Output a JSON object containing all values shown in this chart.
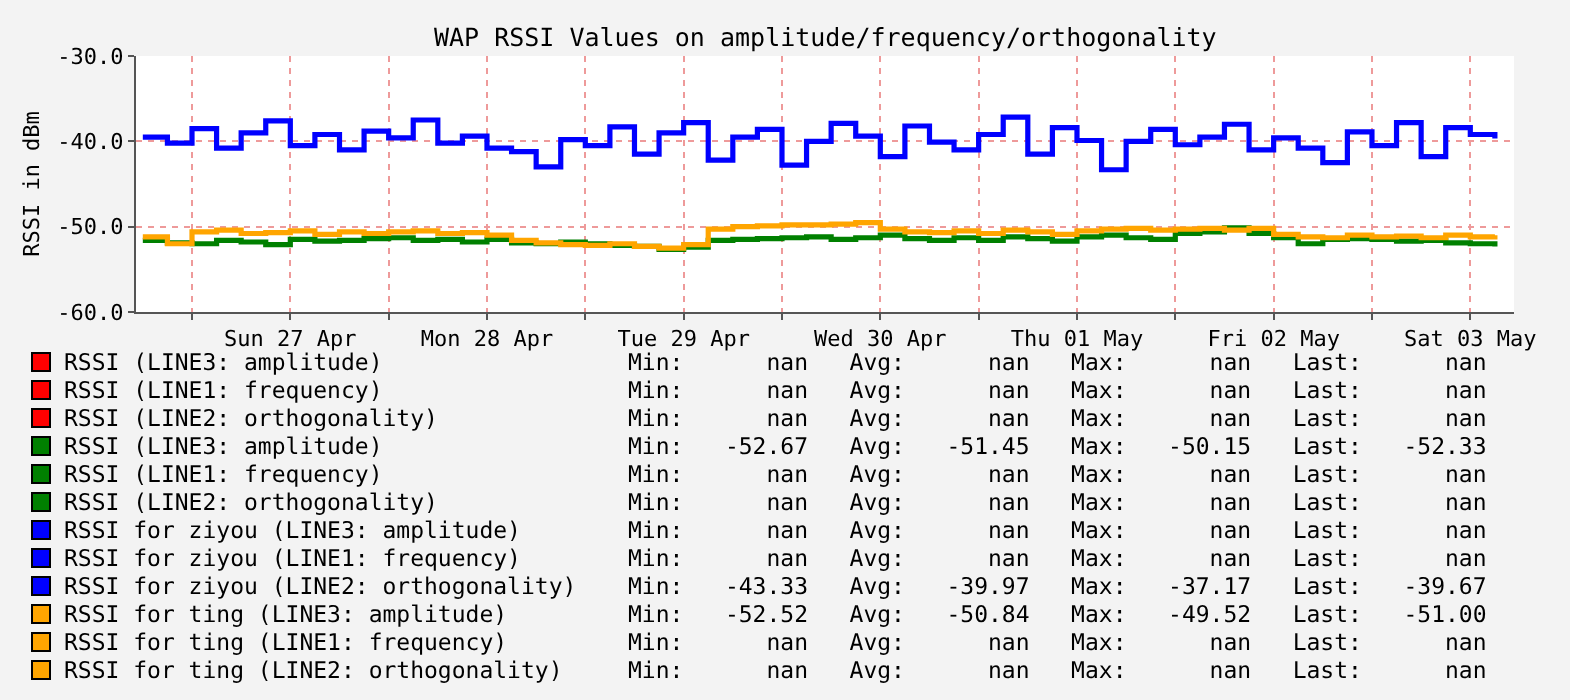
{
  "chart_data": {
    "type": "step",
    "title": "WAP RSSI Values on amplitude/frequency/orthogonality",
    "ylabel": "RSSI in dBm",
    "x": [
      "--04-26T18:00",
      "--04-26T21:00",
      "--04-27T00:00",
      "--04-27T03:00",
      "--04-27T06:00",
      "--04-27T09:00",
      "--04-27T12:00",
      "--04-27T15:00",
      "--04-27T18:00",
      "--04-27T21:00",
      "--04-28T00:00",
      "--04-28T03:00",
      "--04-28T06:00",
      "--04-28T09:00",
      "--04-28T12:00",
      "--04-28T15:00",
      "--04-28T18:00",
      "--04-28T21:00",
      "--04-29T00:00",
      "--04-29T03:00",
      "--04-29T06:00",
      "--04-29T09:00",
      "--04-29T12:00",
      "--04-29T15:00",
      "--04-29T18:00",
      "--04-29T21:00",
      "--04-30T00:00",
      "--04-30T03:00",
      "--04-30T06:00",
      "--04-30T09:00",
      "--04-30T12:00",
      "--04-30T15:00",
      "--04-30T18:00",
      "--04-30T21:00",
      "--05-01T00:00",
      "--05-01T03:00",
      "--05-01T06:00",
      "--05-01T09:00",
      "--05-01T12:00",
      "--05-01T15:00",
      "--05-01T18:00",
      "--05-01T21:00",
      "--05-02T00:00",
      "--05-02T03:00",
      "--05-02T06:00",
      "--05-02T09:00",
      "--05-02T12:00",
      "--05-02T15:00",
      "--05-02T18:00",
      "--05-02T21:00",
      "--05-03T00:00",
      "--05-03T03:00",
      "--05-03T06:00",
      "--05-03T09:00",
      "--05-03T12:00",
      "--05-03T15:00"
    ],
    "series": [
      {
        "name": "RSSI (LINE3: amplitude)",
        "color": "#ff0000",
        "values": [
          null,
          null,
          null,
          null,
          null,
          null,
          null,
          null,
          null,
          null,
          null,
          null,
          null,
          null,
          null,
          null,
          null,
          null,
          null,
          null,
          null,
          null,
          null,
          null,
          null,
          null,
          null,
          null,
          null,
          null,
          null,
          null,
          null,
          null,
          null,
          null,
          null,
          null,
          null,
          null,
          null,
          null,
          null,
          null,
          null,
          null,
          null,
          null,
          null,
          null,
          null,
          null,
          null,
          null,
          null,
          null
        ]
      },
      {
        "name": "RSSI (LINE1: frequency)",
        "color": "#ff0000",
        "values": [
          null,
          null,
          null,
          null,
          null,
          null,
          null,
          null,
          null,
          null,
          null,
          null,
          null,
          null,
          null,
          null,
          null,
          null,
          null,
          null,
          null,
          null,
          null,
          null,
          null,
          null,
          null,
          null,
          null,
          null,
          null,
          null,
          null,
          null,
          null,
          null,
          null,
          null,
          null,
          null,
          null,
          null,
          null,
          null,
          null,
          null,
          null,
          null,
          null,
          null,
          null,
          null,
          null,
          null,
          null,
          null
        ]
      },
      {
        "name": "RSSI (LINE2: orthogonality)",
        "color": "#ff0000",
        "values": [
          null,
          null,
          null,
          null,
          null,
          null,
          null,
          null,
          null,
          null,
          null,
          null,
          null,
          null,
          null,
          null,
          null,
          null,
          null,
          null,
          null,
          null,
          null,
          null,
          null,
          null,
          null,
          null,
          null,
          null,
          null,
          null,
          null,
          null,
          null,
          null,
          null,
          null,
          null,
          null,
          null,
          null,
          null,
          null,
          null,
          null,
          null,
          null,
          null,
          null,
          null,
          null,
          null,
          null,
          null,
          null
        ]
      },
      {
        "name": "RSSI (LINE3: amplitude)",
        "color": "#008000",
        "values": [
          -51.6,
          -51.9,
          -52.0,
          -51.6,
          -51.8,
          -52.1,
          -51.5,
          -51.7,
          -51.6,
          -51.4,
          -51.3,
          -51.6,
          -51.5,
          -51.8,
          -51.5,
          -51.9,
          -52.0,
          -51.8,
          -52.0,
          -52.2,
          -52.3,
          -52.67,
          -52.4,
          -51.6,
          -51.5,
          -51.4,
          -51.3,
          -51.2,
          -51.5,
          -51.3,
          -51.0,
          -51.4,
          -51.6,
          -51.3,
          -51.6,
          -51.2,
          -51.4,
          -51.7,
          -51.2,
          -51.0,
          -51.3,
          -51.5,
          -50.8,
          -50.6,
          -50.15,
          -50.8,
          -51.3,
          -52.0,
          -51.5,
          -51.4,
          -51.5,
          -51.7,
          -51.6,
          -51.9,
          -52.0,
          -52.33
        ]
      },
      {
        "name": "RSSI (LINE1: frequency)",
        "color": "#008000",
        "values": [
          null,
          null,
          null,
          null,
          null,
          null,
          null,
          null,
          null,
          null,
          null,
          null,
          null,
          null,
          null,
          null,
          null,
          null,
          null,
          null,
          null,
          null,
          null,
          null,
          null,
          null,
          null,
          null,
          null,
          null,
          null,
          null,
          null,
          null,
          null,
          null,
          null,
          null,
          null,
          null,
          null,
          null,
          null,
          null,
          null,
          null,
          null,
          null,
          null,
          null,
          null,
          null,
          null,
          null,
          null,
          null
        ]
      },
      {
        "name": "RSSI (LINE2: orthogonality)",
        "color": "#008000",
        "values": [
          null,
          null,
          null,
          null,
          null,
          null,
          null,
          null,
          null,
          null,
          null,
          null,
          null,
          null,
          null,
          null,
          null,
          null,
          null,
          null,
          null,
          null,
          null,
          null,
          null,
          null,
          null,
          null,
          null,
          null,
          null,
          null,
          null,
          null,
          null,
          null,
          null,
          null,
          null,
          null,
          null,
          null,
          null,
          null,
          null,
          null,
          null,
          null,
          null,
          null,
          null,
          null,
          null,
          null,
          null,
          null
        ]
      },
      {
        "name": "RSSI for ziyou (LINE3: amplitude)",
        "color": "#0000ff",
        "values": [
          null,
          null,
          null,
          null,
          null,
          null,
          null,
          null,
          null,
          null,
          null,
          null,
          null,
          null,
          null,
          null,
          null,
          null,
          null,
          null,
          null,
          null,
          null,
          null,
          null,
          null,
          null,
          null,
          null,
          null,
          null,
          null,
          null,
          null,
          null,
          null,
          null,
          null,
          null,
          null,
          null,
          null,
          null,
          null,
          null,
          null,
          null,
          null,
          null,
          null,
          null,
          null,
          null,
          null,
          null,
          null
        ]
      },
      {
        "name": "RSSI for ziyou (LINE1: frequency)",
        "color": "#0000ff",
        "values": [
          null,
          null,
          null,
          null,
          null,
          null,
          null,
          null,
          null,
          null,
          null,
          null,
          null,
          null,
          null,
          null,
          null,
          null,
          null,
          null,
          null,
          null,
          null,
          null,
          null,
          null,
          null,
          null,
          null,
          null,
          null,
          null,
          null,
          null,
          null,
          null,
          null,
          null,
          null,
          null,
          null,
          null,
          null,
          null,
          null,
          null,
          null,
          null,
          null,
          null,
          null,
          null,
          null,
          null,
          null,
          null
        ]
      },
      {
        "name": "RSSI for ziyou (LINE2: orthogonality)",
        "color": "#0000ff",
        "values": [
          -39.5,
          -40.2,
          -38.5,
          -40.8,
          -39.0,
          -37.6,
          -40.5,
          -39.2,
          -41.0,
          -38.8,
          -39.6,
          -37.5,
          -40.2,
          -39.4,
          -40.8,
          -41.2,
          -43.0,
          -39.8,
          -40.5,
          -38.3,
          -41.5,
          -39.0,
          -37.8,
          -42.2,
          -39.5,
          -38.6,
          -42.8,
          -40.0,
          -37.9,
          -39.4,
          -41.8,
          -38.2,
          -40.1,
          -41.0,
          -39.2,
          -37.17,
          -41.5,
          -38.4,
          -39.9,
          -43.33,
          -40.0,
          -38.6,
          -40.4,
          -39.5,
          -38.0,
          -41.0,
          -39.6,
          -40.8,
          -42.5,
          -38.9,
          -40.5,
          -37.8,
          -41.8,
          -38.4,
          -39.2,
          -39.67
        ]
      },
      {
        "name": "RSSI for ting (LINE3: amplitude)",
        "color": "#ffa500",
        "values": [
          -51.2,
          -52.0,
          -50.6,
          -50.4,
          -50.8,
          -50.7,
          -50.5,
          -50.9,
          -50.6,
          -50.8,
          -50.6,
          -50.5,
          -50.8,
          -50.7,
          -51.0,
          -51.6,
          -51.9,
          -52.1,
          -52.2,
          -52.0,
          -52.3,
          -52.52,
          -52.1,
          -50.3,
          -50.0,
          -49.9,
          -49.8,
          -49.8,
          -49.7,
          -49.52,
          -50.3,
          -50.6,
          -50.7,
          -50.5,
          -50.8,
          -50.4,
          -50.6,
          -50.9,
          -50.5,
          -50.3,
          -50.2,
          -50.4,
          -50.3,
          -50.2,
          -50.4,
          -50.2,
          -50.9,
          -51.2,
          -51.3,
          -51.0,
          -51.2,
          -51.1,
          -51.3,
          -51.0,
          -51.2,
          -51.0
        ]
      },
      {
        "name": "RSSI for ting (LINE1: frequency)",
        "color": "#ffa500",
        "values": [
          null,
          null,
          null,
          null,
          null,
          null,
          null,
          null,
          null,
          null,
          null,
          null,
          null,
          null,
          null,
          null,
          null,
          null,
          null,
          null,
          null,
          null,
          null,
          null,
          null,
          null,
          null,
          null,
          null,
          null,
          null,
          null,
          null,
          null,
          null,
          null,
          null,
          null,
          null,
          null,
          null,
          null,
          null,
          null,
          null,
          null,
          null,
          null,
          null,
          null,
          null,
          null,
          null,
          null,
          null,
          null
        ]
      },
      {
        "name": "RSSI for ting (LINE2: orthogonality)",
        "color": "#ffa500",
        "values": [
          null,
          null,
          null,
          null,
          null,
          null,
          null,
          null,
          null,
          null,
          null,
          null,
          null,
          null,
          null,
          null,
          null,
          null,
          null,
          null,
          null,
          null,
          null,
          null,
          null,
          null,
          null,
          null,
          null,
          null,
          null,
          null,
          null,
          null,
          null,
          null,
          null,
          null,
          null,
          null,
          null,
          null,
          null,
          null,
          null,
          null,
          null,
          null,
          null,
          null,
          null,
          null,
          null,
          null,
          null,
          null
        ]
      }
    ],
    "annotations": [
      "Min:      nan   Avg:      nan   Max:      nan   Last:      nan",
      "Min:      nan   Avg:      nan   Max:      nan   Last:      nan",
      "Min:      nan   Avg:      nan   Max:      nan   Last:      nan",
      "Min:   -52.67   Avg:   -51.45   Max:   -50.15   Last:   -52.33",
      "Min:      nan   Avg:      nan   Max:      nan   Last:      nan",
      "Min:      nan   Avg:      nan   Max:      nan   Last:      nan",
      "Min:      nan   Avg:      nan   Max:      nan   Last:      nan",
      "Min:      nan   Avg:      nan   Max:      nan   Last:      nan",
      "Min:   -43.33   Avg:   -39.97   Max:   -37.17   Last:   -39.67",
      "Min:   -52.52   Avg:   -50.84   Max:   -49.52   Last:   -51.00",
      "Min:      nan   Avg:      nan   Max:      nan   Last:      nan",
      "Min:      nan   Avg:      nan   Max:      nan   Last:      nan"
    ],
    "xlim": [
      "--04-26T17:10",
      "--05-03T17:20"
    ],
    "xticks": [
      {
        "value": "--04-27T00:00",
        "label": null
      },
      {
        "value": "--04-27T12:00",
        "label": "Sun 27 Apr"
      },
      {
        "value": "--04-28T00:00",
        "label": null
      },
      {
        "value": "--04-28T12:00",
        "label": "Mon 28 Apr"
      },
      {
        "value": "--04-29T00:00",
        "label": null
      },
      {
        "value": "--04-29T12:00",
        "label": "Tue 29 Apr"
      },
      {
        "value": "--04-30T00:00",
        "label": null
      },
      {
        "value": "--04-30T12:00",
        "label": "Wed 30 Apr"
      },
      {
        "value": "--05-01T00:00",
        "label": null
      },
      {
        "value": "--05-01T12:00",
        "label": "Thu 01 May"
      },
      {
        "value": "--05-02T00:00",
        "label": null
      },
      {
        "value": "--05-02T12:00",
        "label": "Fri 02 May"
      },
      {
        "value": "--05-03T00:00",
        "label": null
      },
      {
        "value": "--05-03T12:00",
        "label": "Sat 03 May"
      }
    ],
    "ylim": [
      -60,
      -30
    ],
    "yticks": [
      {
        "value": -60,
        "label": "-60.0"
      },
      {
        "value": -50,
        "label": "-50.0"
      },
      {
        "value": -40,
        "label": "-40.0"
      },
      {
        "value": -30,
        "label": "-30.0"
      }
    ],
    "grid": true,
    "legend": "bottom",
    "line_style": "solid",
    "marker": "none"
  }
}
